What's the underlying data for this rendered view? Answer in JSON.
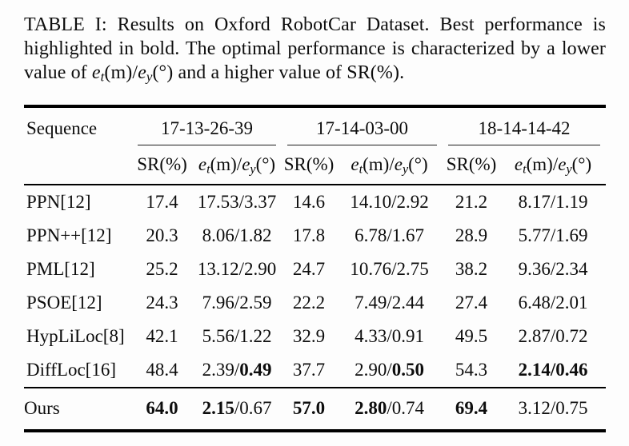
{
  "caption": {
    "part1": "TABLE I: Results on Oxford RobotCar Dataset. Best performance is highlighted in bold. The optimal performance is characterized by a lower value of ",
    "part2": " and a higher value of SR(%)."
  },
  "math": {
    "e": "e",
    "t": "t",
    "mid": "(m)/",
    "e2": "e",
    "y": "y",
    "deg": "(°)"
  },
  "table": {
    "sequence_header": "Sequence",
    "group_headers": [
      "17-13-26-39",
      "17-14-03-00",
      "18-14-14-42"
    ],
    "sr_header": "SR(%)",
    "rows": [
      {
        "method": "PPN[12]",
        "cells": [
          [
            {
              "text": "17.4"
            }
          ],
          [
            {
              "text": "17.53/3.37"
            }
          ],
          [
            {
              "text": "14.6"
            }
          ],
          [
            {
              "text": "14.10/2.92"
            }
          ],
          [
            {
              "text": "21.2"
            }
          ],
          [
            {
              "text": "8.17/1.19"
            }
          ]
        ]
      },
      {
        "method": "PPN++[12]",
        "cells": [
          [
            {
              "text": "20.3"
            }
          ],
          [
            {
              "text": "8.06/1.82"
            }
          ],
          [
            {
              "text": "17.8"
            }
          ],
          [
            {
              "text": "6.78/1.67"
            }
          ],
          [
            {
              "text": "28.9"
            }
          ],
          [
            {
              "text": "5.77/1.69"
            }
          ]
        ]
      },
      {
        "method": "PML[12]",
        "cells": [
          [
            {
              "text": "25.2"
            }
          ],
          [
            {
              "text": "13.12/2.90"
            }
          ],
          [
            {
              "text": "24.7"
            }
          ],
          [
            {
              "text": "10.76/2.75"
            }
          ],
          [
            {
              "text": "38.2"
            }
          ],
          [
            {
              "text": "9.36/2.34"
            }
          ]
        ]
      },
      {
        "method": "PSOE[12]",
        "cells": [
          [
            {
              "text": "24.3"
            }
          ],
          [
            {
              "text": "7.96/2.59"
            }
          ],
          [
            {
              "text": "22.2"
            }
          ],
          [
            {
              "text": "7.49/2.44"
            }
          ],
          [
            {
              "text": "27.4"
            }
          ],
          [
            {
              "text": "6.48/2.01"
            }
          ]
        ]
      },
      {
        "method": "HypLiLoc[8]",
        "cells": [
          [
            {
              "text": "42.1"
            }
          ],
          [
            {
              "text": "5.56/1.22"
            }
          ],
          [
            {
              "text": "32.9"
            }
          ],
          [
            {
              "text": "4.33/0.91"
            }
          ],
          [
            {
              "text": "49.5"
            }
          ],
          [
            {
              "text": "2.87/0.72"
            }
          ]
        ]
      },
      {
        "method": "DiffLoc[16]",
        "cells": [
          [
            {
              "text": "48.4"
            }
          ],
          [
            {
              "text": "2.39/"
            },
            {
              "text": "0.49",
              "bold": true
            }
          ],
          [
            {
              "text": "37.7"
            }
          ],
          [
            {
              "text": "2.90/"
            },
            {
              "text": "0.50",
              "bold": true
            }
          ],
          [
            {
              "text": "54.3"
            }
          ],
          [
            {
              "text": "2.14/0.46",
              "bold": true
            }
          ]
        ]
      },
      {
        "method": "Ours",
        "is_ours": true,
        "cells": [
          [
            {
              "text": "64.0",
              "bold": true
            }
          ],
          [
            {
              "text": "2.15",
              "bold": true
            },
            {
              "text": "/0.67"
            }
          ],
          [
            {
              "text": "57.0",
              "bold": true
            }
          ],
          [
            {
              "text": "2.80",
              "bold": true
            },
            {
              "text": "/0.74"
            }
          ],
          [
            {
              "text": "69.4",
              "bold": true
            }
          ],
          [
            {
              "text": "3.12/0.75"
            }
          ]
        ]
      }
    ]
  }
}
